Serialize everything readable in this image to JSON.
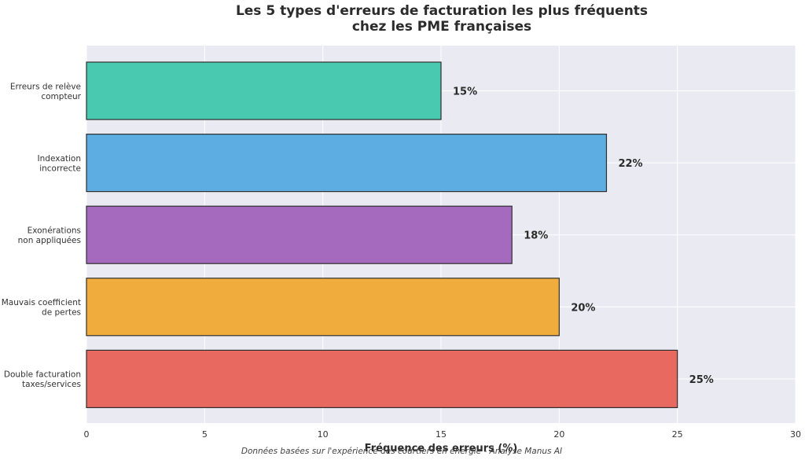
{
  "chart_data": {
    "type": "bar",
    "orientation": "horizontal",
    "title_lines": [
      "Les 5 types d'erreurs de facturation les plus fréquents",
      "chez les PME françaises"
    ],
    "categories": [
      [
        "Erreurs de relève",
        "compteur"
      ],
      [
        "Indexation",
        "incorrecte"
      ],
      [
        "Exonérations",
        "non appliquées"
      ],
      [
        "Mauvais coefficient",
        "de pertes"
      ],
      [
        "Double facturation",
        "taxes/services"
      ]
    ],
    "values": [
      15,
      22,
      18,
      20,
      25
    ],
    "value_labels": [
      "15%",
      "22%",
      "18%",
      "20%",
      "25%"
    ],
    "colors": [
      "#48c9b0",
      "#5dade2",
      "#a569bd",
      "#f0ad3e",
      "#e8695f"
    ],
    "xlabel": "Fréquence des erreurs (%)",
    "ylabel": "",
    "xlim": [
      0,
      30
    ],
    "x_ticks": [
      "0",
      "5",
      "10",
      "15",
      "20",
      "25",
      "30"
    ],
    "grid": true,
    "plot_background": "#eaeaf2",
    "source_note": "Données basées sur l'expérience des courtiers en énergie - Analyse Manus AI"
  }
}
